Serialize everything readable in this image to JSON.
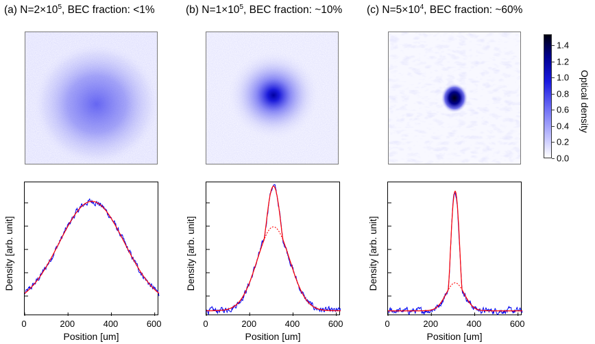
{
  "titles": [
    {
      "prefix": "(a) N=2",
      "times": "×",
      "mant": "10",
      "exp": "5",
      "suffix": ", BEC fraction: <1%"
    },
    {
      "prefix": "(b) N=1",
      "times": "×",
      "mant": "10",
      "exp": "5",
      "suffix": ", BEC fraction: ~10%"
    },
    {
      "prefix": "(c) N=5",
      "times": "×",
      "mant": "10",
      "exp": "4",
      "suffix": ", BEC fraction: ~60%"
    }
  ],
  "axes": {
    "ylabel": "Density [arb. unit]",
    "xlabel": "Position [um]",
    "xticks": [
      "0",
      "200",
      "400",
      "600"
    ]
  },
  "colorbar": {
    "label": "Optical density",
    "ticks": [
      "1.4",
      "1.2",
      "1.0",
      "0.8",
      "0.6",
      "0.4",
      "0.2",
      "0.0"
    ]
  },
  "colors": {
    "data": "#0000ee",
    "fit": "#ff0000",
    "colormap_max": "#000010",
    "colormap_mid": "#1a1ae0"
  },
  "chart_data": [
    {
      "type": "line",
      "title": "(a) N=2×10^5, BEC fraction: <1%",
      "xlabel": "Position [um]",
      "ylabel": "Density [arb. unit]",
      "xlim": [
        0,
        620
      ],
      "ylim": [
        0,
        1.05
      ],
      "center": 310,
      "thermal_width": 150,
      "thermal_amp": 0.82,
      "bec_amp": 0.0,
      "bec_width": 0,
      "baseline": 0.08,
      "series": []
    },
    {
      "type": "line",
      "title": "(b) N=1×10^5, BEC fraction: ~10%",
      "xlabel": "Position [um]",
      "ylabel": "Density [arb. unit]",
      "xlim": [
        0,
        620
      ],
      "ylim": [
        0,
        1.05
      ],
      "center": 310,
      "thermal_width": 75,
      "thermal_amp": 0.66,
      "bec_amp": 0.32,
      "bec_width": 28,
      "baseline": 0.04,
      "series": []
    },
    {
      "type": "line",
      "title": "(c) N=5×10^4, BEC fraction: ~60%",
      "xlabel": "Position [um]",
      "ylabel": "Density [arb. unit]",
      "xlim": [
        0,
        620
      ],
      "ylim": [
        0,
        1.05
      ],
      "center": 310,
      "thermal_width": 42,
      "thermal_amp": 0.22,
      "bec_amp": 0.72,
      "bec_width": 20,
      "baseline": 0.04,
      "series": []
    }
  ]
}
